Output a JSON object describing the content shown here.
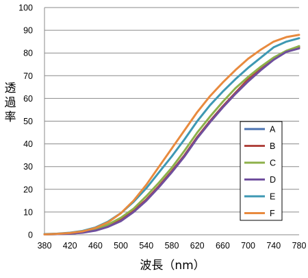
{
  "chart_data": {
    "type": "line",
    "xlabel": "波長（nm）",
    "ylabel": "透過率",
    "xlim": [
      380,
      780
    ],
    "ylim": [
      0,
      100
    ],
    "x_ticks": [
      380,
      420,
      460,
      500,
      540,
      580,
      620,
      660,
      700,
      740,
      780
    ],
    "y_ticks": [
      0,
      10,
      20,
      30,
      40,
      50,
      60,
      70,
      80,
      90,
      100
    ],
    "grid": "horizontal",
    "legend_position": "right",
    "x": [
      380,
      400,
      420,
      440,
      460,
      480,
      500,
      520,
      540,
      560,
      580,
      600,
      620,
      640,
      660,
      680,
      700,
      720,
      740,
      760,
      780
    ],
    "series": [
      {
        "name": "A",
        "color": "#4a72b0",
        "values": [
          0.2,
          0.3,
          0.5,
          1.0,
          2.0,
          3.8,
          6.5,
          10.5,
          15.5,
          21.5,
          28.0,
          35.0,
          43.0,
          50.0,
          56.5,
          62.5,
          68.0,
          73.0,
          77.5,
          80.5,
          83.0
        ]
      },
      {
        "name": "B",
        "color": "#b0443e",
        "values": [
          0.2,
          0.3,
          0.5,
          1.0,
          2.0,
          3.8,
          6.5,
          10.5,
          15.5,
          21.5,
          28.0,
          35.0,
          43.0,
          50.0,
          56.5,
          62.5,
          68.5,
          73.5,
          77.5,
          80.5,
          82.5
        ]
      },
      {
        "name": "C",
        "color": "#8db04a",
        "values": [
          0.2,
          0.3,
          0.6,
          1.2,
          2.5,
          4.5,
          7.5,
          11.5,
          17.0,
          23.0,
          29.5,
          37.0,
          45.0,
          52.0,
          58.5,
          64.5,
          69.5,
          74.0,
          78.0,
          81.0,
          83.0
        ]
      },
      {
        "name": "D",
        "color": "#6f4f9e",
        "values": [
          0.2,
          0.3,
          0.5,
          0.9,
          1.8,
          3.5,
          6.0,
          10.0,
          15.0,
          21.0,
          27.5,
          34.5,
          42.5,
          49.5,
          56.0,
          62.0,
          67.5,
          72.5,
          77.0,
          80.5,
          82.0
        ]
      },
      {
        "name": "E",
        "color": "#3e98b3",
        "values": [
          0.3,
          0.5,
          0.9,
          1.7,
          3.2,
          5.8,
          9.5,
          14.5,
          20.5,
          27.5,
          34.5,
          42.0,
          50.0,
          57.0,
          63.0,
          68.5,
          73.5,
          78.0,
          82.5,
          85.0,
          86.5
        ]
      },
      {
        "name": "F",
        "color": "#e88a3e",
        "values": [
          0.2,
          0.4,
          0.8,
          1.5,
          3.0,
          5.5,
          9.5,
          15.0,
          22.0,
          30.0,
          38.0,
          46.0,
          54.0,
          61.0,
          67.0,
          72.5,
          77.5,
          81.5,
          85.0,
          87.0,
          88.0
        ]
      }
    ]
  }
}
